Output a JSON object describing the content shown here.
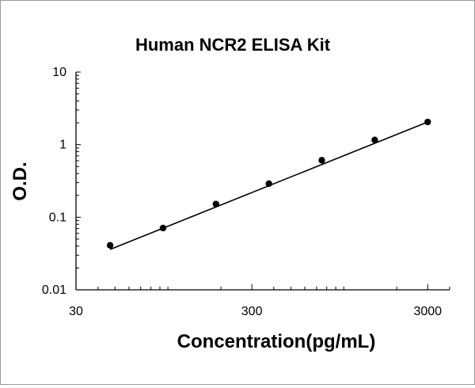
{
  "chart_data": {
    "type": "scatter",
    "title": "Human NCR2 ELISA Kit",
    "xlabel": "Concentration(pg/mL)",
    "ylabel": "O.D.",
    "x_scale": "log",
    "y_scale": "log",
    "xlim": [
      30,
      4000
    ],
    "ylim": [
      0.01,
      10
    ],
    "x_ticks": [
      {
        "value": 30,
        "label": "30"
      },
      {
        "value": 300,
        "label": "300"
      },
      {
        "value": 3000,
        "label": "3000"
      }
    ],
    "y_ticks": [
      {
        "value": 0.01,
        "label": "0.01"
      },
      {
        "value": 0.1,
        "label": "0.1"
      },
      {
        "value": 1,
        "label": "1"
      },
      {
        "value": 10,
        "label": "10"
      }
    ],
    "grid": false,
    "legend": "none",
    "series": [
      {
        "x": [
          46.88,
          93.75,
          187.5,
          375,
          750,
          1500,
          3000
        ],
        "y": [
          0.041,
          0.071,
          0.152,
          0.29,
          0.61,
          1.16,
          2.05
        ],
        "color": "#000000"
      }
    ],
    "fit_line": {
      "type": "power",
      "x": [
        46.88,
        3000
      ],
      "y": [
        0.036,
        2.05
      ],
      "color": "#000000"
    }
  }
}
